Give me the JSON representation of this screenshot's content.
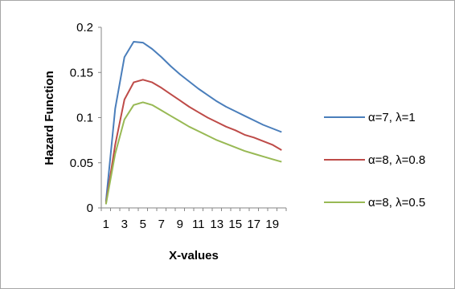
{
  "chart_data": {
    "type": "line",
    "x": [
      1,
      2,
      3,
      4,
      5,
      6,
      7,
      8,
      9,
      10,
      11,
      12,
      13,
      14,
      15,
      16,
      17,
      18,
      19,
      20
    ],
    "x_tick_labels": [
      "1",
      "3",
      "5",
      "7",
      "9",
      "11",
      "13",
      "15",
      "17",
      "19"
    ],
    "y_ticks": [
      0,
      0.05,
      0.1,
      0.15,
      0.2
    ],
    "y_tick_labels": [
      "0",
      "0.05",
      "0.1",
      "0.15",
      "0.2"
    ],
    "ylim": [
      0,
      0.2
    ],
    "xlabel": "X-values",
    "ylabel": "Hazard Function",
    "legend_position": "right",
    "grid": false,
    "series": [
      {
        "name": "α=7, λ=1",
        "color": "#4a7ebb",
        "values": [
          0.007,
          0.11,
          0.167,
          0.184,
          0.183,
          0.176,
          0.167,
          0.157,
          0.148,
          0.14,
          0.132,
          0.125,
          0.118,
          0.112,
          0.107,
          0.102,
          0.097,
          0.092,
          0.088,
          0.084
        ]
      },
      {
        "name": "α=8, λ=0.8",
        "color": "#be4b48",
        "values": [
          0.005,
          0.07,
          0.12,
          0.139,
          0.142,
          0.139,
          0.133,
          0.126,
          0.119,
          0.112,
          0.106,
          0.1,
          0.095,
          0.09,
          0.086,
          0.081,
          0.078,
          0.074,
          0.07,
          0.064
        ]
      },
      {
        "name": "α=8, λ=0.5",
        "color": "#98b954",
        "values": [
          0.004,
          0.06,
          0.098,
          0.114,
          0.117,
          0.114,
          0.108,
          0.102,
          0.096,
          0.09,
          0.085,
          0.08,
          0.075,
          0.071,
          0.067,
          0.063,
          0.06,
          0.057,
          0.054,
          0.051
        ]
      }
    ]
  }
}
